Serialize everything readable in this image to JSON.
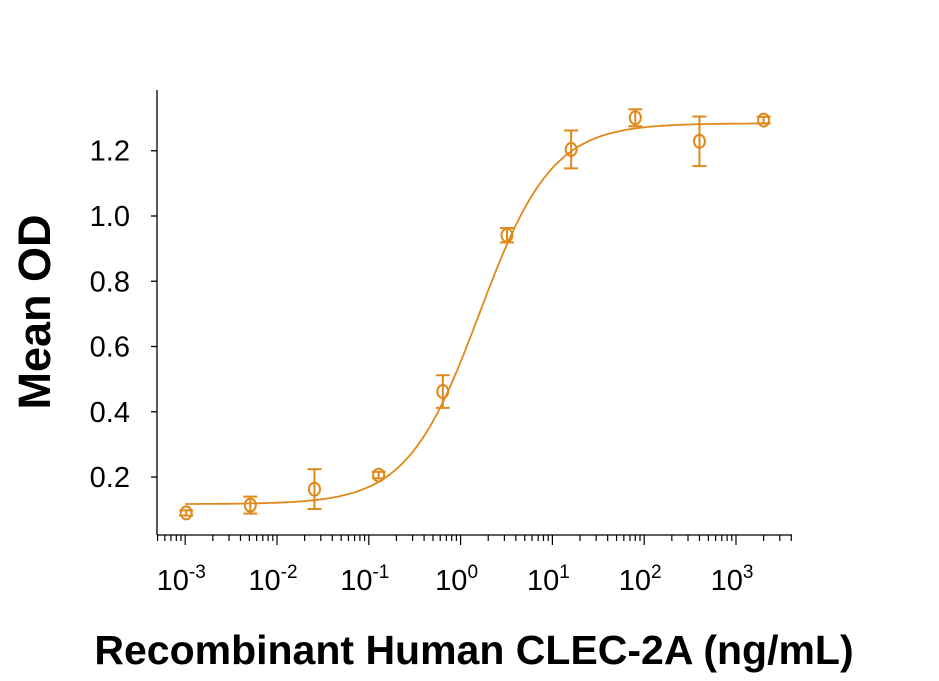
{
  "chart_data": {
    "type": "scatter",
    "xlabel": "Recombinant Human CLEC-2A (ng/mL)",
    "ylabel": "Mean OD",
    "xscale": "log",
    "xlim": [
      0.0008,
      5000
    ],
    "ylim": [
      0.0,
      1.4
    ],
    "grid": false,
    "color": "#E0891A",
    "x_ticks": [
      {
        "base": "10",
        "exp": "-3",
        "value": 0.001
      },
      {
        "base": "10",
        "exp": "-2",
        "value": 0.01
      },
      {
        "base": "10",
        "exp": "-1",
        "value": 0.1
      },
      {
        "base": "10",
        "exp": "0",
        "value": 1
      },
      {
        "base": "10",
        "exp": "1",
        "value": 10
      },
      {
        "base": "10",
        "exp": "2",
        "value": 100
      },
      {
        "base": "10",
        "exp": "3",
        "value": 1000
      }
    ],
    "y_ticks": [
      "0.2",
      "0.4",
      "0.6",
      "0.8",
      "1.0",
      "1.2"
    ],
    "points": [
      {
        "x": 0.001024,
        "y": 0.09,
        "err": 0.008
      },
      {
        "x": 0.00512,
        "y": 0.114,
        "err": 0.026
      },
      {
        "x": 0.0256,
        "y": 0.163,
        "err": 0.061
      },
      {
        "x": 0.128,
        "y": 0.206,
        "err": 0.01
      },
      {
        "x": 0.64,
        "y": 0.462,
        "err": 0.05
      },
      {
        "x": 3.2,
        "y": 0.941,
        "err": 0.022
      },
      {
        "x": 16,
        "y": 1.204,
        "err": 0.058
      },
      {
        "x": 80,
        "y": 1.301,
        "err": 0.026
      },
      {
        "x": 400,
        "y": 1.229,
        "err": 0.076
      },
      {
        "x": 2000,
        "y": 1.294,
        "err": 0.01
      }
    ],
    "fit": {
      "model": "4PL",
      "bottom": 0.117,
      "top": 1.284,
      "ec50": 1.6,
      "hill": 1.1
    }
  }
}
